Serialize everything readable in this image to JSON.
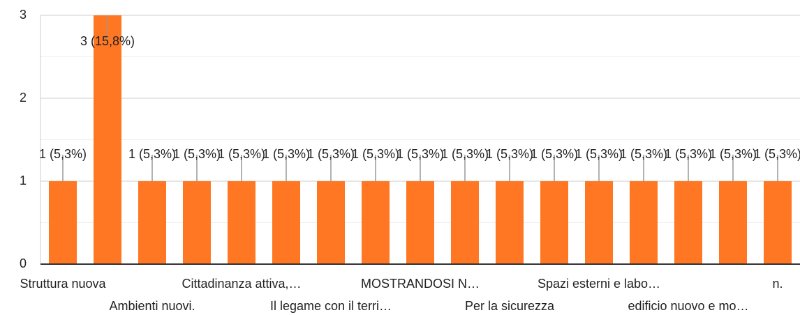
{
  "chart_data": {
    "type": "bar",
    "categories": [
      "Struttura nuova",
      null,
      "Ambienti nuovi.",
      null,
      "Cittadinanza attiva,…",
      null,
      "Il legame con il terri…",
      null,
      "MOSTRANDOSI N…",
      null,
      "Per la sicurezza",
      null,
      "Spazi esterni e labo…",
      null,
      "edificio nuovo e mo…",
      null,
      "n."
    ],
    "values": [
      1,
      3,
      1,
      1,
      1,
      1,
      1,
      1,
      1,
      1,
      1,
      1,
      1,
      1,
      1,
      1,
      1
    ],
    "value_labels": [
      "1 (5,3%)",
      "3 (15,8%)",
      "1 (5,3%)",
      "1 (5,3%)",
      "1 (5,3%)",
      "1 (5,3%)",
      "1 (5,3%)",
      "1 (5,3%)",
      "1 (5,3%)",
      "1 (5,3%)",
      "1 (5,3%)",
      "1 (5,3%)",
      "1 (5,3%)",
      "1 (5,3%)",
      "1 (5,3%)",
      "1 (5,3%)",
      "1 (5,3%)"
    ],
    "color": "#ff7722",
    "ylim": [
      0,
      3
    ],
    "yticks": [
      0,
      1,
      2,
      3
    ],
    "grid": true
  }
}
